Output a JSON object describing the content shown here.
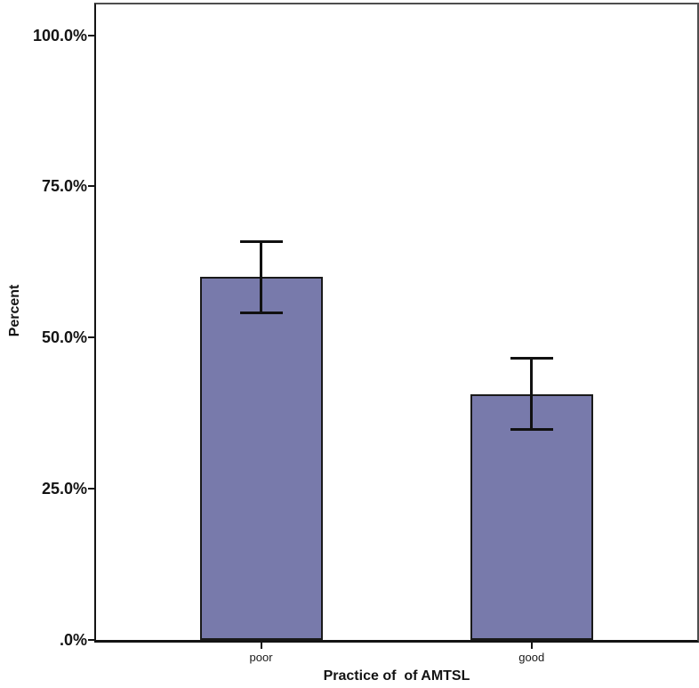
{
  "figure": {
    "background": "#ffffff"
  },
  "chart_data": {
    "type": "bar",
    "title": "",
    "xlabel": "Practice of  of AMTSL",
    "ylabel": "Percent",
    "categories": [
      "poor",
      "good"
    ],
    "values": [
      60.0,
      40.6
    ],
    "error_bars": [
      {
        "low": 54.0,
        "high": 66.0
      },
      {
        "low": 34.7,
        "high": 46.6
      }
    ],
    "y_ticks": [
      {
        "label": "100.0%",
        "value": 100
      },
      {
        "label": "75.0%",
        "value": 75
      },
      {
        "label": "50.0%",
        "value": 50
      },
      {
        "label": "25.0%",
        "value": 25
      },
      {
        "label": ".0%",
        "value": 0
      }
    ],
    "ylim": [
      0,
      105.1
    ],
    "grid": false,
    "legend": null,
    "colors": {
      "bar_fill": "#787aab",
      "bar_border": "#1a1a1a",
      "error_bar": "#111111",
      "axis": "#141414",
      "frame": "#4e4e4e"
    }
  }
}
